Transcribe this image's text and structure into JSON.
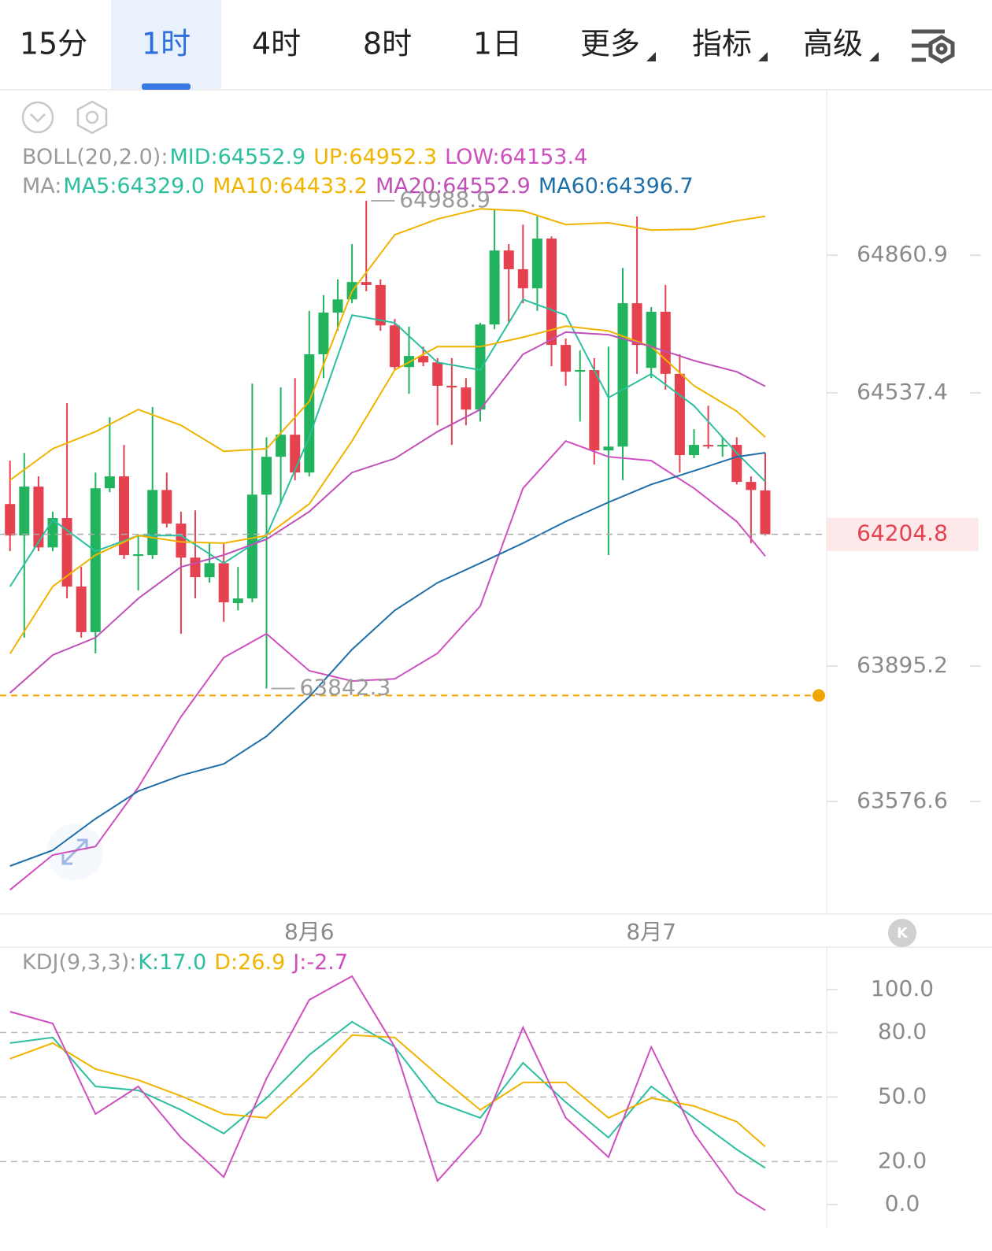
{
  "tabs": [
    {
      "label": "15分"
    },
    {
      "label": "1时",
      "active": true
    },
    {
      "label": "4时"
    },
    {
      "label": "8时"
    },
    {
      "label": "1日"
    },
    {
      "label": "更多",
      "dropdown": true
    },
    {
      "label": "指标",
      "dropdown": true
    },
    {
      "label": "高级",
      "dropdown": true
    }
  ],
  "chart_data": [
    {
      "type": "candlestick",
      "categories": [
        null,
        null,
        null,
        null,
        null,
        null,
        null,
        null,
        null,
        null,
        null,
        null,
        null,
        null,
        null,
        null,
        null,
        null,
        null,
        null,
        null,
        "8月6",
        null,
        null,
        null,
        null,
        null,
        null,
        null,
        null,
        null,
        null,
        null,
        null,
        null,
        null,
        null,
        null,
        null,
        null,
        null,
        null,
        null,
        null,
        null,
        "8月7",
        null,
        null,
        null,
        null,
        null,
        null,
        null,
        null
      ],
      "open": [
        64276,
        64202,
        64317,
        64174,
        64243,
        64082,
        63975,
        64313,
        64341,
        64154,
        64156,
        64309,
        64230,
        64150,
        64104,
        64137,
        64043,
        64054,
        64298,
        64387,
        64439,
        64350,
        64628,
        64726,
        64757,
        64798,
        64791,
        64696,
        64598,
        64624,
        64609,
        64554,
        64550,
        64498,
        64698,
        64872,
        64828,
        64783,
        64900,
        64650,
        64587,
        64591,
        64402,
        64411,
        64748,
        64596,
        64728,
        64582,
        64391,
        64415,
        64413,
        64415,
        64328,
        64308
      ],
      "high": [
        64378,
        64396,
        64341,
        64258,
        64513,
        64128,
        64350,
        64480,
        64415,
        64202,
        64504,
        64350,
        64258,
        64261,
        64184,
        64184,
        64128,
        64559,
        64433,
        64550,
        64572,
        64730,
        64767,
        64804,
        64887,
        64988.9,
        64804,
        64711,
        64693,
        64646,
        64619,
        64619,
        64572,
        64702,
        64970,
        64887,
        64933,
        64952,
        64905,
        64665,
        64637,
        64619,
        64646,
        64831,
        64952,
        64739,
        64791,
        64628,
        64452,
        64507,
        64433,
        64433,
        64341,
        64396
      ],
      "low": [
        64165,
        63962,
        64165,
        64165,
        64054,
        63962,
        63925,
        64304,
        64147,
        64073,
        64147,
        64221,
        63971,
        64054,
        64091,
        63999,
        64026,
        64045,
        63842.3,
        64276,
        64332,
        64341,
        64572,
        64683,
        64748,
        64776,
        64683,
        64591,
        64535,
        64600,
        64461,
        64415,
        64461,
        64470,
        64687,
        64702,
        64748,
        64730,
        64600,
        64554,
        64470,
        64369,
        64156,
        64332,
        64582,
        64572,
        64545,
        64350,
        64384,
        64406,
        64387,
        64322,
        64184,
        64202
      ],
      "close": [
        64202,
        64317,
        64174,
        64243,
        64082,
        63975,
        64313,
        64341,
        64156,
        64158,
        64309,
        64230,
        64150,
        64104,
        64137,
        64045,
        64054,
        64298,
        64387,
        64439,
        64350,
        64628,
        64726,
        64757,
        64798,
        64791,
        64696,
        64598,
        64624,
        64609,
        64554,
        64550,
        64498,
        64698,
        64872,
        64828,
        64783,
        64900,
        64650,
        64587,
        64591,
        64402,
        64411,
        64748,
        64650,
        64728,
        64582,
        64391,
        64415,
        64413,
        64415,
        64328,
        64309,
        64204.8
      ],
      "up_color": "#22b35e",
      "down_color": "#e5414f",
      "ylim": [
        63314,
        65248
      ],
      "yticks": [
        64860.9,
        64537.4,
        63895.2,
        63576.6
      ],
      "alert_line": {
        "value": 63826,
        "color": "#f0a500"
      },
      "line_x": [
        0,
        3,
        6,
        9,
        12,
        15,
        18,
        21,
        24,
        27,
        30,
        33,
        36,
        39,
        42,
        45,
        48,
        51,
        53
      ],
      "legend": [
        {
          "prefix": "BOLL(20,2.0):",
          "items": [
            {
              "label": "MID:64552.9",
              "color": "#2bbf9f"
            },
            {
              "label": "UP:64952.3",
              "color": "#f0b400",
              "values": [
                64332,
                64406,
                64446,
                64498,
                64461,
                64400,
                64406,
                64517,
                64776,
                64909,
                64946,
                64970,
                64965,
                64933,
                64937,
                64920,
                64922,
                64942,
                64952.3
              ]
            },
            {
              "label": "LOW:64153.4",
              "color": "#d04fc0",
              "values": [
                63369,
                63451,
                63471,
                63610,
                63776,
                63915,
                63971,
                63884,
                63860,
                63865,
                63925,
                64036,
                64313,
                64424,
                64387,
                64378,
                64313,
                64235,
                64153.4
              ]
            }
          ]
        },
        {
          "prefix": "MA:",
          "items": [
            {
              "label": "MA5:64329.0",
              "color": "#2bbf9f",
              "values": [
                64082,
                64239,
                64165,
                64202,
                64202,
                64137,
                64202,
                64433,
                64720,
                64702,
                64609,
                64591,
                64757,
                64720,
                64526,
                64582,
                64507,
                64396,
                64329.0
              ]
            },
            {
              "label": "MA10:64433.2",
              "color": "#f0b400",
              "values": [
                63924,
                64082,
                64156,
                64202,
                64187,
                64184,
                64202,
                64276,
                64424,
                64591,
                64646,
                64646,
                64668,
                64694,
                64683,
                64646,
                64554,
                64494,
                64433.2
              ]
            },
            {
              "label": "MA20:64552.9",
              "color": "#c050b8",
              "values": [
                63832,
                63921,
                63962,
                64054,
                64128,
                64156,
                64193,
                64258,
                64350,
                64383,
                64446,
                64498,
                64628,
                64680,
                64674,
                64646,
                64613,
                64587,
                64552.9
              ]
            },
            {
              "label": "MA60:64396.7",
              "color": "#1e6fa8",
              "values": [
                63425,
                63462,
                63536,
                63601,
                63638,
                63665,
                63730,
                63823,
                63934,
                64026,
                64091,
                64137,
                64184,
                64235,
                64280,
                64322,
                64354,
                64387,
                64396.7
              ]
            }
          ]
        }
      ]
    },
    {
      "type": "line",
      "ylim": [
        -11,
        119
      ],
      "yticks": [
        {
          "value": 100,
          "label": "100.0"
        },
        {
          "value": 80,
          "label": "80.0",
          "grid": true
        },
        {
          "value": 50,
          "label": "50.0",
          "grid": true
        },
        {
          "value": 20,
          "label": "20.0",
          "grid": true
        },
        {
          "value": 0,
          "label": "0.0"
        }
      ],
      "line_x": [
        0,
        3,
        6,
        9,
        12,
        15,
        18,
        21,
        24,
        27,
        30,
        33,
        36,
        39,
        42,
        45,
        48,
        51,
        53
      ],
      "legend": [
        {
          "prefix": "KDJ(9,3,3):",
          "items": [
            {
              "label": "K:17.0",
              "color": "#2bbf9f",
              "values": [
                75.1,
                77.7,
                54.9,
                53.1,
                44.0,
                33.0,
                49.5,
                69.6,
                85.0,
                73.3,
                47.6,
                40.3,
                65.9,
                47.6,
                31.1,
                54.9,
                40.3,
                25.6,
                17.0
              ]
            },
            {
              "label": "D:26.9",
              "color": "#f0b400",
              "values": [
                67.8,
                75.1,
                63.0,
                57.9,
                50.5,
                42.1,
                40.3,
                58.6,
                78.8,
                77.7,
                60.4,
                44.0,
                56.8,
                56.8,
                40.3,
                49.5,
                45.8,
                38.5,
                26.9
              ]
            },
            {
              "label": "J:-2.7",
              "color": "#d04fc0",
              "values": [
                89.7,
                84.2,
                42.1,
                54.9,
                31.1,
                12.8,
                58.6,
                95.2,
                106.2,
                73.3,
                11.0,
                33.0,
                82.4,
                40.3,
                22.0,
                73.3,
                33.0,
                5.5,
                -2.7
              ]
            }
          ]
        }
      ]
    }
  ]
}
